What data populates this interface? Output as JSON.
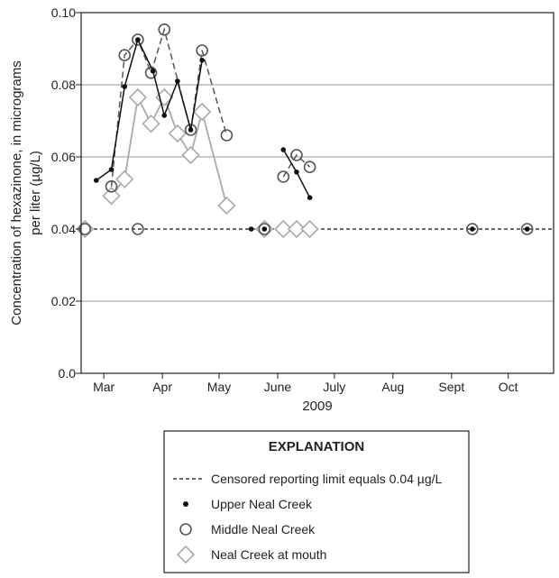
{
  "chart_data": {
    "type": "line",
    "title": "",
    "xlabel": "2009",
    "ylabel_lines": [
      "Concentration of hexazinone, in micrograms",
      "per liter (µg/L)"
    ],
    "x_unit": "day of year, 2009",
    "xlim": [
      62,
      312
    ],
    "ylim": [
      0,
      0.1
    ],
    "y_ticks": [
      0.0,
      0.02,
      0.04,
      0.06,
      0.08,
      0.1
    ],
    "y_tick_labels": [
      "0.0",
      "0.02",
      "0.04",
      "0.06",
      "0.08",
      "0.10"
    ],
    "x_tick_labels": [
      "Mar",
      "Apr",
      "May",
      "June",
      "July",
      "Aug",
      "Sept",
      "Oct"
    ],
    "x_tick_positions": [
      74,
      105,
      135,
      166,
      196,
      227,
      258,
      288
    ],
    "grid": true,
    "reference_line": {
      "value": 0.04,
      "label": "Censored reporting limit equals 0.04 µg/L"
    },
    "legend": {
      "title": "EXPLANATION",
      "placement": "bottom-center",
      "entries": [
        {
          "key": "reference",
          "label": "Censored reporting limit equals 0.04 µg/L"
        },
        {
          "key": "upper",
          "label": "Upper Neal Creek"
        },
        {
          "key": "middle",
          "label": "Middle Neal Creek"
        },
        {
          "key": "mouth",
          "label": "Neal Creek at mouth"
        }
      ]
    },
    "series": [
      {
        "key": "upper",
        "name": "Upper Neal Creek",
        "marker": "dot",
        "line_style": "solid",
        "color": "#111111",
        "segments": [
          [
            [
              70,
              0.0535
            ],
            [
              78,
              0.0565
            ],
            [
              85,
              0.0795
            ],
            [
              92,
              0.0925
            ],
            [
              100,
              0.0838
            ],
            [
              106,
              0.0715
            ],
            [
              113,
              0.081
            ],
            [
              120,
              0.0675
            ],
            [
              126,
              0.0868
            ]
          ],
          [
            [
              169,
              0.062
            ],
            [
              176,
              0.0558
            ],
            [
              183,
              0.0487
            ]
          ]
        ],
        "censored_points": [
          [
            152,
            0.04
          ],
          [
            159,
            0.04
          ],
          [
            269,
            0.04
          ],
          [
            298,
            0.04
          ]
        ]
      },
      {
        "key": "middle",
        "name": "Middle Neal Creek",
        "marker": "circle",
        "line_style": "dashed",
        "color": "#555555",
        "segments": [
          [
            [
              78,
              0.0518
            ],
            [
              85,
              0.0882
            ],
            [
              92,
              0.0925
            ],
            [
              99,
              0.0833
            ],
            [
              106,
              0.0953
            ],
            [
              120,
              0.0675
            ],
            [
              126,
              0.0895
            ],
            [
              139,
              0.066
            ]
          ],
          [
            [
              169,
              0.0545
            ],
            [
              176,
              0.0605
            ],
            [
              183,
              0.0572
            ]
          ]
        ],
        "censored_points": [
          [
            64,
            0.04
          ],
          [
            92,
            0.04
          ],
          [
            159,
            0.04
          ],
          [
            269,
            0.04
          ],
          [
            298,
            0.04
          ]
        ]
      },
      {
        "key": "mouth",
        "name": "Neal Creek at mouth",
        "marker": "diamond",
        "line_style": "solid",
        "color": "#aaaaaa",
        "segments": [
          [
            [
              78,
              0.0492
            ],
            [
              85,
              0.0538
            ],
            [
              92,
              0.0765
            ],
            [
              99,
              0.0692
            ],
            [
              106,
              0.0765
            ],
            [
              113,
              0.0665
            ],
            [
              120,
              0.0605
            ],
            [
              126,
              0.0725
            ],
            [
              139,
              0.0465
            ]
          ]
        ],
        "censored_points": [
          [
            64,
            0.04
          ],
          [
            159,
            0.04
          ],
          [
            169,
            0.04
          ],
          [
            176,
            0.04
          ],
          [
            183,
            0.04
          ]
        ]
      }
    ]
  }
}
